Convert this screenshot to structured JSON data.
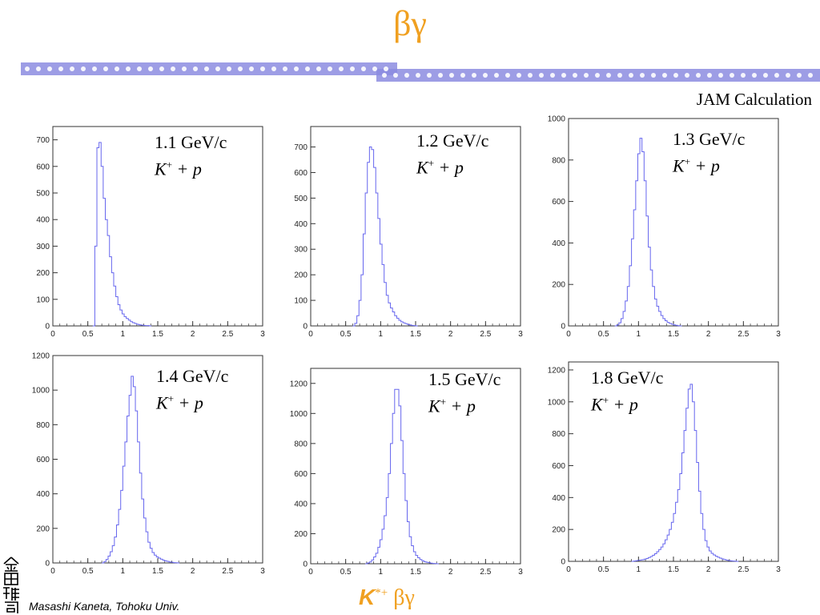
{
  "slide": {
    "title": "βγ",
    "subtitle": "JAM Calculation",
    "footer": "Masashi Kaneta, Tohoku Univ.",
    "bottom_label": {
      "k": "K",
      "sup": "*+",
      "greek": " βγ"
    },
    "seal_text": "金田雅司",
    "accent_color": "#f0a020",
    "hist_color": "#6666ee"
  },
  "chart_data": [
    {
      "type": "histogram",
      "label_momentum": "1.1 GeV/c",
      "label_k": "K",
      "label_sup": "+",
      "label_rest": " + p",
      "xlim": [
        0,
        3
      ],
      "ylim": [
        0,
        750
      ],
      "xticks": [
        0,
        0.5,
        1,
        1.5,
        2,
        2.5,
        3
      ],
      "xtick_labels": [
        "0",
        "0.5",
        "1",
        "1.5",
        "2",
        "2.5",
        "3"
      ],
      "yticks": [
        0,
        100,
        200,
        300,
        400,
        500,
        600,
        700
      ],
      "ytick_labels": [
        "0",
        "100",
        "200",
        "300",
        "400",
        "500",
        "600",
        "700"
      ],
      "bin_width": 0.03,
      "x_start": 0.57,
      "values": [
        0,
        300,
        670,
        690,
        600,
        480,
        400,
        340,
        260,
        200,
        150,
        110,
        80,
        60,
        45,
        35,
        28,
        22,
        16,
        12,
        9,
        6,
        4,
        3,
        2,
        1,
        1,
        0
      ]
    },
    {
      "type": "histogram",
      "label_momentum": "1.2 GeV/c",
      "label_k": "K",
      "label_sup": "+",
      "label_rest": " + p",
      "xlim": [
        0,
        3
      ],
      "ylim": [
        0,
        780
      ],
      "xticks": [
        0,
        0.5,
        1,
        1.5,
        2,
        2.5,
        3
      ],
      "xtick_labels": [
        "0",
        "0.5",
        "1",
        "1.5",
        "2",
        "2.5",
        "3"
      ],
      "yticks": [
        0,
        100,
        200,
        300,
        400,
        500,
        600,
        700
      ],
      "ytick_labels": [
        "0",
        "100",
        "200",
        "300",
        "400",
        "500",
        "600",
        "700"
      ],
      "bin_width": 0.03,
      "x_start": 0.6,
      "values": [
        0,
        10,
        40,
        100,
        200,
        360,
        520,
        640,
        700,
        690,
        620,
        520,
        420,
        320,
        240,
        170,
        120,
        90,
        70,
        55,
        40,
        30,
        22,
        16,
        12,
        9,
        6,
        4,
        2,
        1,
        0
      ]
    },
    {
      "type": "histogram",
      "label_momentum": "1.3 GeV/c",
      "label_k": "K",
      "label_sup": "+",
      "label_rest": " + p",
      "xlim": [
        0,
        3
      ],
      "ylim": [
        0,
        1000
      ],
      "xticks": [
        0,
        0.5,
        1,
        1.5,
        2,
        2.5,
        3
      ],
      "xtick_labels": [
        "0",
        "0.5",
        "1",
        "1.5",
        "2",
        "2.5",
        "3"
      ],
      "yticks": [
        0,
        200,
        400,
        600,
        800,
        1000
      ],
      "ytick_labels": [
        "0",
        "200",
        "400",
        "600",
        "800",
        "1000"
      ],
      "bin_width": 0.03,
      "x_start": 0.66,
      "values": [
        0,
        5,
        15,
        35,
        70,
        120,
        190,
        290,
        420,
        560,
        700,
        830,
        905,
        840,
        700,
        530,
        380,
        270,
        190,
        130,
        95,
        70,
        50,
        35,
        25,
        17,
        12,
        8,
        5,
        3,
        1,
        0
      ]
    },
    {
      "type": "histogram",
      "label_momentum": "1.4 GeV/c",
      "label_k": "K",
      "label_sup": "+",
      "label_rest": " + p",
      "xlim": [
        0,
        3
      ],
      "ylim": [
        0,
        1200
      ],
      "xticks": [
        0,
        0.5,
        1,
        1.5,
        2,
        2.5,
        3
      ],
      "xtick_labels": [
        "0",
        "0.5",
        "1",
        "1.5",
        "2",
        "2.5",
        "3"
      ],
      "yticks": [
        0,
        200,
        400,
        600,
        800,
        1000,
        1200
      ],
      "ytick_labels": [
        "0",
        "200",
        "400",
        "600",
        "800",
        "1000",
        "1200"
      ],
      "bin_width": 0.03,
      "x_start": 0.7,
      "values": [
        0,
        8,
        20,
        40,
        65,
        100,
        150,
        220,
        310,
        420,
        560,
        700,
        850,
        970,
        1080,
        1020,
        880,
        700,
        520,
        370,
        260,
        180,
        120,
        85,
        60,
        45,
        35,
        28,
        22,
        16,
        12,
        9,
        6,
        4,
        2,
        1,
        0
      ]
    },
    {
      "type": "histogram",
      "label_momentum": "1.5 GeV/c",
      "label_k": "K",
      "label_sup": "+",
      "label_rest": " + p",
      "xlim": [
        0,
        3
      ],
      "ylim": [
        0,
        1300
      ],
      "xticks": [
        0,
        0.5,
        1,
        1.5,
        2,
        2.5,
        3
      ],
      "xtick_labels": [
        "0",
        "0.5",
        "1",
        "1.5",
        "2",
        "2.5",
        "3"
      ],
      "yticks": [
        0,
        200,
        400,
        600,
        800,
        1000,
        1200
      ],
      "ytick_labels": [
        "0",
        "200",
        "400",
        "600",
        "800",
        "1000",
        "1200"
      ],
      "bin_width": 0.03,
      "x_start": 0.78,
      "values": [
        0,
        5,
        12,
        25,
        45,
        70,
        110,
        160,
        230,
        320,
        440,
        600,
        800,
        1000,
        1160,
        1160,
        1050,
        820,
        600,
        420,
        280,
        180,
        120,
        80,
        55,
        40,
        28,
        20,
        14,
        10,
        7,
        4,
        2,
        1,
        0
      ]
    },
    {
      "type": "histogram",
      "label_momentum": "1.8 GeV/c",
      "label_k": "K",
      "label_sup": "+",
      "label_rest": " + p",
      "xlim": [
        0,
        3
      ],
      "ylim": [
        0,
        1250
      ],
      "xticks": [
        0,
        0.5,
        1,
        1.5,
        2,
        2.5,
        3
      ],
      "xtick_labels": [
        "0",
        "0.5",
        "1",
        "1.5",
        "2",
        "2.5",
        "3"
      ],
      "yticks": [
        0,
        200,
        400,
        600,
        800,
        1000,
        1200
      ],
      "ytick_labels": [
        "0",
        "200",
        "400",
        "600",
        "800",
        "1000",
        "1200"
      ],
      "bin_width": 0.03,
      "x_start": 0.9,
      "values": [
        0,
        2,
        4,
        6,
        8,
        10,
        14,
        18,
        24,
        30,
        38,
        48,
        60,
        74,
        90,
        110,
        135,
        165,
        200,
        245,
        300,
        370,
        450,
        550,
        680,
        820,
        960,
        1080,
        1110,
        1000,
        820,
        620,
        440,
        300,
        200,
        130,
        90,
        65,
        50,
        40,
        32,
        26,
        20,
        15,
        11,
        8,
        5,
        3,
        2,
        1,
        0
      ]
    }
  ]
}
